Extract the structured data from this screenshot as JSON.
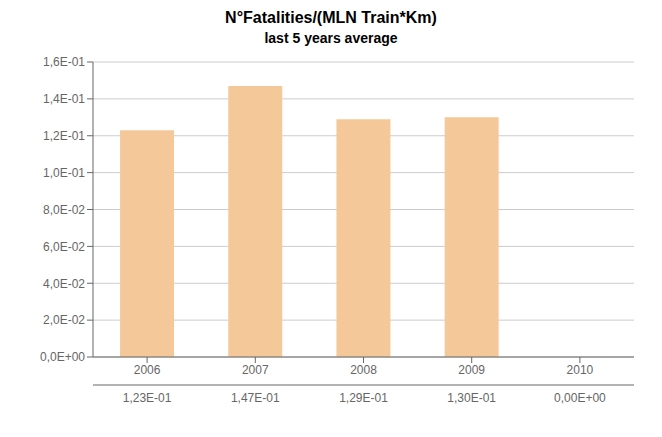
{
  "chart_data": {
    "type": "bar",
    "title": "N°Fatalities/(MLN Train*Km)",
    "subtitle": "last 5 years average",
    "categories": [
      "2006",
      "2007",
      "2008",
      "2009",
      "2010"
    ],
    "values": [
      0.123,
      0.147,
      0.129,
      0.13,
      0.0
    ],
    "value_labels": [
      "1,23E-01",
      "1,47E-01",
      "1,29E-01",
      "1,30E-01",
      "0,00E+00"
    ],
    "color": "#F5C89A",
    "ylim": [
      0,
      0.16
    ],
    "yticks": [
      {
        "value": 0.0,
        "label": "0,0E+00"
      },
      {
        "value": 0.02,
        "label": "2,0E-02"
      },
      {
        "value": 0.04,
        "label": "4,0E-02"
      },
      {
        "value": 0.06,
        "label": "6,0E-02"
      },
      {
        "value": 0.08,
        "label": "8,0E-02"
      },
      {
        "value": 0.1,
        "label": "1,0E-01"
      },
      {
        "value": 0.12,
        "label": "1,2E-01"
      },
      {
        "value": 0.14,
        "label": "1,4E-01"
      },
      {
        "value": 0.16,
        "label": "1,6E-01"
      }
    ],
    "grid": true
  }
}
